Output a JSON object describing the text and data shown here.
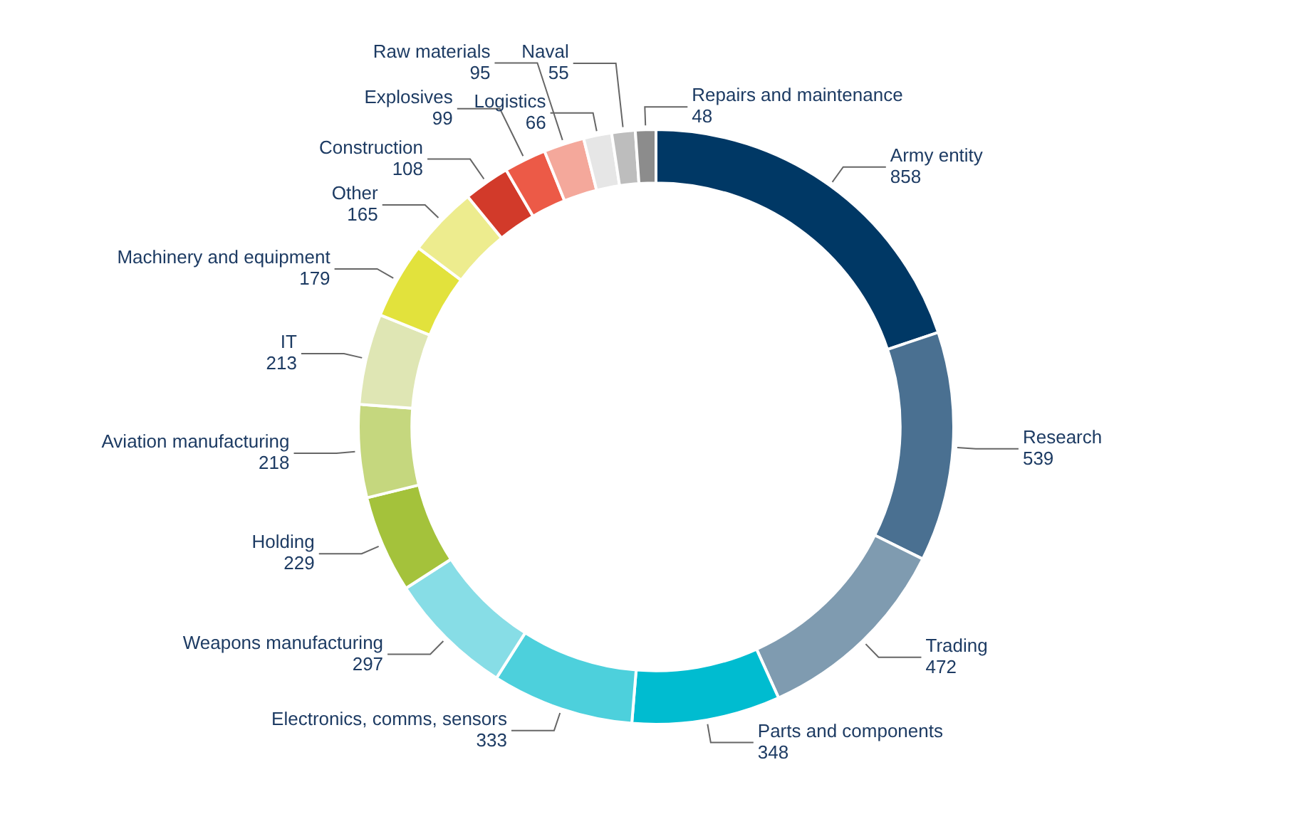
{
  "chart_data": {
    "type": "donut",
    "categories": [
      "Army entity",
      "Research",
      "Trading",
      "Parts and components",
      "Electronics, comms, sensors",
      "Weapons manufacturing",
      "Holding",
      "Aviation manufacturing",
      "IT",
      "Machinery and equipment",
      "Other",
      "Construction",
      "Explosives",
      "Raw materials",
      "Logistics",
      "Naval",
      "Repairs and maintenance"
    ],
    "values": [
      858,
      539,
      472,
      348,
      333,
      297,
      229,
      218,
      213,
      179,
      165,
      108,
      99,
      95,
      66,
      55,
      48
    ],
    "colors": [
      "#003865",
      "#4a7091",
      "#7f9bb0",
      "#00bcd0",
      "#4dd0dc",
      "#87dde6",
      "#a4c23b",
      "#c5d77e",
      "#dfe6b4",
      "#e2e23c",
      "#edec8e",
      "#d23a2a",
      "#ec5a47",
      "#f4a89b",
      "#e6e6e6",
      "#bdbdbd",
      "#8c8c8c"
    ],
    "data_labels": true
  }
}
